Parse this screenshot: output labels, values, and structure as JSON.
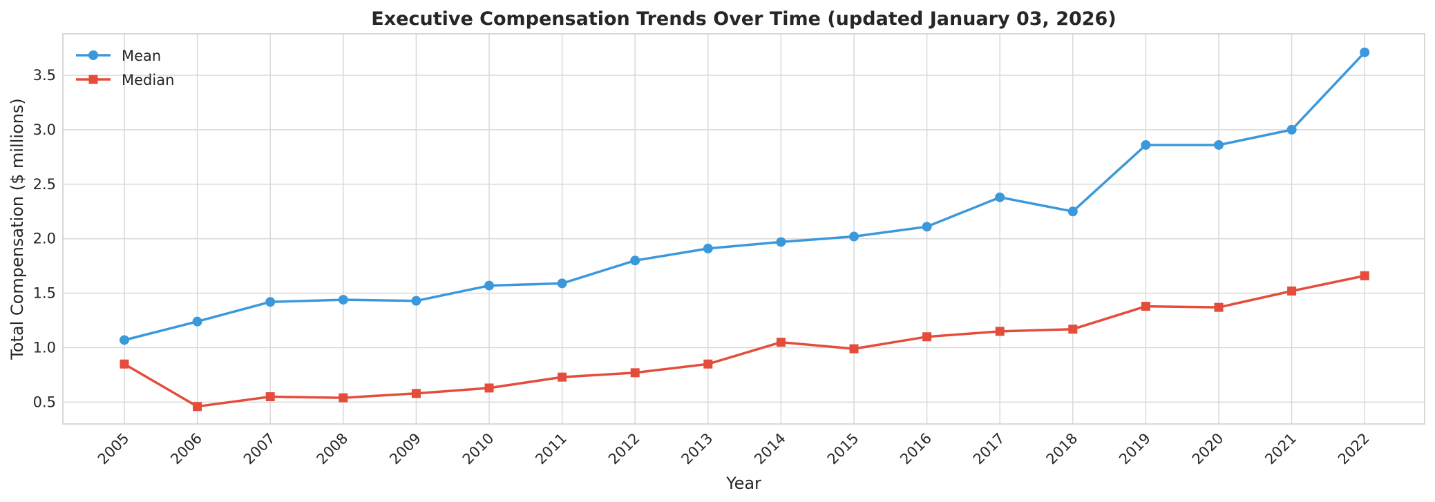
{
  "chart_data": {
    "type": "line",
    "title": "Executive Compensation Trends Over Time (updated January 03, 2026)",
    "xlabel": "Year",
    "ylabel": "Total Compensation ($ millions)",
    "x": [
      "2005",
      "2006",
      "2007",
      "2008",
      "2009",
      "2010",
      "2011",
      "2012",
      "2013",
      "2014",
      "2015",
      "2016",
      "2017",
      "2018",
      "2019",
      "2020",
      "2021",
      "2022"
    ],
    "ylim": [
      0.3,
      3.88
    ],
    "yticks": [
      "0.5",
      "1.0",
      "1.5",
      "2.0",
      "2.5",
      "3.0",
      "3.5"
    ],
    "grid": true,
    "legend_position": "top-left",
    "series": [
      {
        "name": "Mean",
        "color": "#3b98db",
        "marker": "circle",
        "values": [
          1.07,
          1.24,
          1.42,
          1.44,
          1.43,
          1.57,
          1.59,
          1.8,
          1.91,
          1.97,
          2.02,
          2.11,
          2.38,
          2.25,
          2.86,
          2.86,
          3.0,
          3.71
        ]
      },
      {
        "name": "Median",
        "color": "#e44c3b",
        "marker": "square",
        "values": [
          0.85,
          0.46,
          0.55,
          0.54,
          0.58,
          0.63,
          0.73,
          0.77,
          0.85,
          1.05,
          0.99,
          1.1,
          1.15,
          1.17,
          1.38,
          1.37,
          1.52,
          1.66
        ]
      }
    ]
  }
}
